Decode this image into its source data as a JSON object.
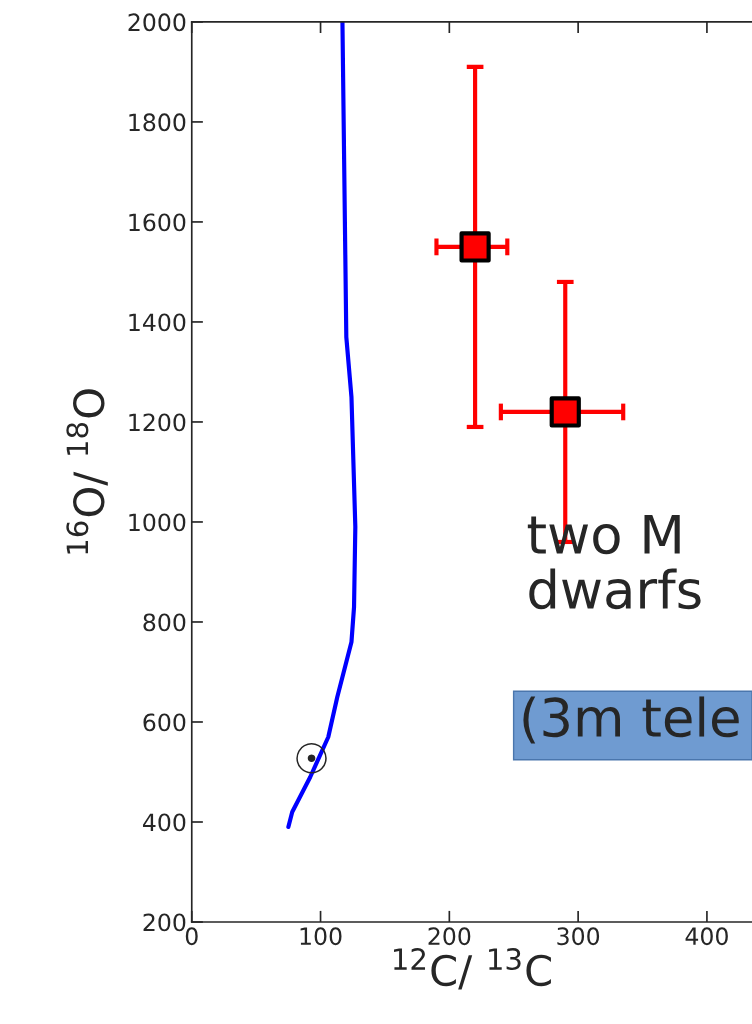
{
  "chart_data": {
    "type": "scatter",
    "xlabel": "$^{12}$C/ $^{13}$C",
    "ylabel": "$^{16}$O/ $^{18}$O",
    "xlim": [
      0,
      435
    ],
    "ylim": [
      200,
      2000
    ],
    "xticks": [
      0,
      100,
      200,
      300,
      400
    ],
    "yticks": [
      200,
      400,
      600,
      800,
      1000,
      1200,
      1400,
      1600,
      1800,
      2000
    ],
    "grid": false,
    "series": [
      {
        "type": "line",
        "marker": "none",
        "color": "#0000ff",
        "x": [
          75,
          78,
          92,
          106,
          113,
          124,
          126,
          127,
          124,
          120,
          117
        ],
        "values": [
          390,
          420,
          490,
          570,
          650,
          760,
          830,
          990,
          1250,
          1370,
          2000
        ]
      },
      {
        "marker": "square",
        "color": "#ff0000",
        "x": [
          220,
          290
        ],
        "values": [
          1550,
          1220
        ],
        "errors": [
          [
            1190,
            1910
          ],
          [
            960,
            1480
          ]
        ],
        "xerrors": [
          [
            190,
            245
          ],
          [
            240,
            335
          ]
        ]
      }
    ],
    "annotations": [
      {
        "text": "☉",
        "x": 93,
        "y": 520
      },
      "two M\ndwarfs",
      "(3m tele"
    ]
  }
}
